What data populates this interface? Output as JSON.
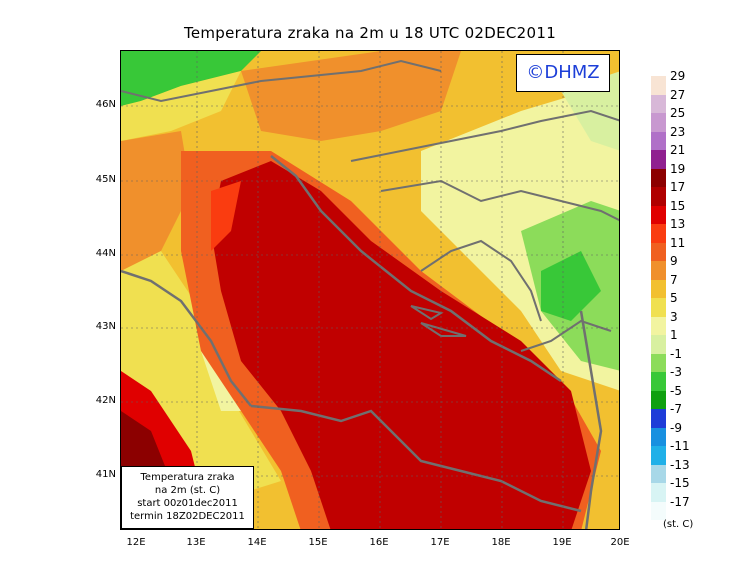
{
  "title": "Temperatura zraka na 2m u 18 UTC 02DEC2011",
  "badge": "©DHMZ",
  "info_box": {
    "line1": "Temperatura zraka",
    "line2": "na 2m (st. C)",
    "line3": "start 00z01dec2011",
    "line4": "termin 18Z02DEC2011"
  },
  "lat_labels": [
    "46N",
    "45N",
    "44N",
    "43N",
    "42N",
    "41N"
  ],
  "lon_labels": [
    "12E",
    "13E",
    "14E",
    "15E",
    "16E",
    "17E",
    "18E",
    "19E",
    "20E"
  ],
  "colorbar": {
    "labels": [
      "29",
      "27",
      "25",
      "23",
      "21",
      "19",
      "17",
      "15",
      "13",
      "11",
      "9",
      "7",
      "5",
      "3",
      "1",
      "-1",
      "-3",
      "-5",
      "-7",
      "-9",
      "-11",
      "-13",
      "-15",
      "-17"
    ],
    "colors": [
      "#f8e4d4",
      "#d8b8d8",
      "#c898d0",
      "#b070c8",
      "#902090",
      "#8c0000",
      "#b00000",
      "#e00000",
      "#fa3c10",
      "#f06020",
      "#f0902c",
      "#f2c030",
      "#f0e050",
      "#f2f4a0",
      "#d8f0a0",
      "#8cdc5a",
      "#38c838",
      "#10a010",
      "#1e3cd8",
      "#1890e0",
      "#20b0e8",
      "#a8d8e8",
      "#d8f4f4",
      "#f4fcfc"
    ],
    "units": "(st. C)"
  }
}
